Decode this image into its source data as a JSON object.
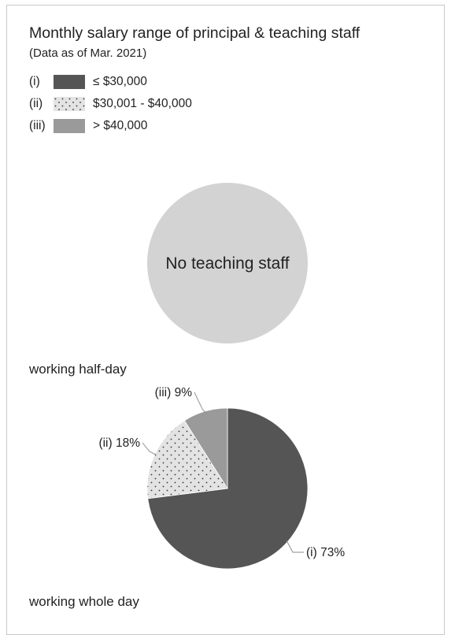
{
  "chart_data": {
    "type": "pie",
    "title": "Monthly salary range of principal & teaching staff",
    "subtitle": "(Data as of Mar. 2021)",
    "legend": [
      {
        "key": "(i)",
        "label": "≤ $30,000",
        "color": "#555555",
        "pattern": "solid"
      },
      {
        "key": "(ii)",
        "label": "$30,001 - $40,000",
        "color": "#e3e3e3",
        "pattern": "dots"
      },
      {
        "key": "(iii)",
        "label": "> $40,000",
        "color": "#9a9a9a",
        "pattern": "solid"
      }
    ],
    "pies": [
      {
        "caption": "working half-day",
        "no_data": true,
        "no_data_text": "No teaching staff",
        "no_data_color": "#d3d3d3"
      },
      {
        "caption": "working whole day",
        "no_data": false,
        "slices": [
          {
            "key": "(i)",
            "value": 73,
            "label": "(i) 73%"
          },
          {
            "key": "(ii)",
            "value": 18,
            "label": "(ii) 18%"
          },
          {
            "key": "(iii)",
            "value": 9,
            "label": "(iii) 9%"
          }
        ]
      }
    ]
  }
}
